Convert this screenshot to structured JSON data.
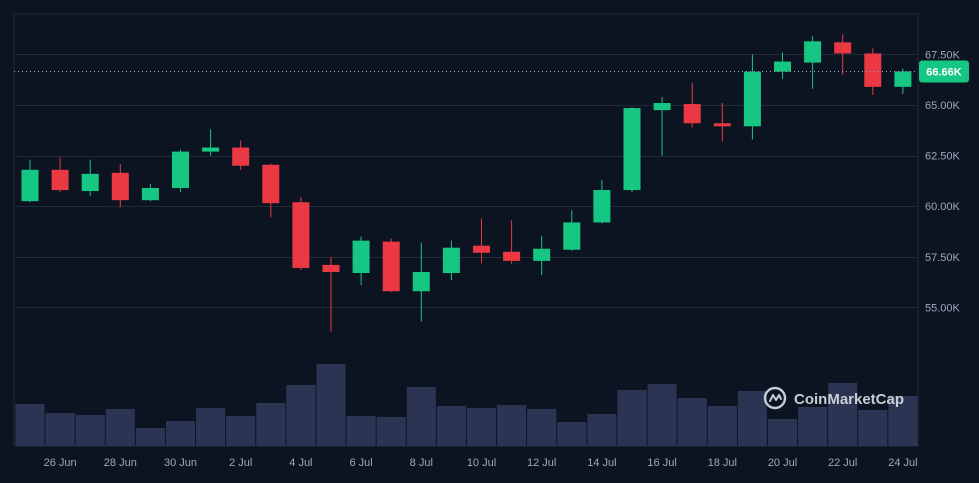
{
  "watermark": {
    "text": "CoinMarketCap",
    "icon": "coinmarketcap-logo-icon"
  },
  "colors": {
    "background": "#0d1421",
    "up": "#16c784",
    "down": "#ea3943",
    "volume": "#2b3553",
    "grid": "#222a38",
    "tick_text": "#a1a7bb",
    "price_line": "#a1a7bb"
  },
  "chart_data": {
    "type": "candlestick",
    "title": "",
    "xlabel": "",
    "ylabel": "",
    "ylim": [
      52500,
      69500
    ],
    "y_ticks": [
      55000,
      57500,
      60000,
      62500,
      65000,
      67500
    ],
    "y_tick_labels": [
      "55.00K",
      "57.50K",
      "60.00K",
      "62.50K",
      "65.00K",
      "67.50K"
    ],
    "x_tick_labels": [
      "26 Jun",
      "28 Jun",
      "30 Jun",
      "2 Jul",
      "4 Jul",
      "6 Jul",
      "8 Jul",
      "10 Jul",
      "12 Jul",
      "14 Jul",
      "16 Jul",
      "18 Jul",
      "20 Jul",
      "22 Jul",
      "24 Jul"
    ],
    "current_price": 66660,
    "current_price_label": "66.66K",
    "grid": true,
    "candles": [
      {
        "date": "25 Jun",
        "open": 60250,
        "high": 62300,
        "low": 60200,
        "close": 61800
      },
      {
        "date": "26 Jun",
        "open": 61800,
        "high": 62400,
        "low": 60700,
        "close": 60800
      },
      {
        "date": "27 Jun",
        "open": 60750,
        "high": 62300,
        "low": 60500,
        "close": 61600
      },
      {
        "date": "28 Jun",
        "open": 61650,
        "high": 62100,
        "low": 59950,
        "close": 60300
      },
      {
        "date": "29 Jun",
        "open": 60300,
        "high": 61100,
        "low": 60250,
        "close": 60900
      },
      {
        "date": "30 Jun",
        "open": 60900,
        "high": 62800,
        "low": 60700,
        "close": 62700
      },
      {
        "date": "1 Jul",
        "open": 62700,
        "high": 63800,
        "low": 62500,
        "close": 62900
      },
      {
        "date": "2 Jul",
        "open": 62900,
        "high": 63250,
        "low": 61800,
        "close": 62000
      },
      {
        "date": "3 Jul",
        "open": 62050,
        "high": 62100,
        "low": 59450,
        "close": 60150
      },
      {
        "date": "4 Jul",
        "open": 60200,
        "high": 60450,
        "low": 56850,
        "close": 56950
      },
      {
        "date": "5 Jul",
        "open": 57100,
        "high": 57500,
        "low": 53800,
        "close": 56750
      },
      {
        "date": "6 Jul",
        "open": 56700,
        "high": 58500,
        "low": 56100,
        "close": 58300
      },
      {
        "date": "7 Jul",
        "open": 58250,
        "high": 58400,
        "low": 55750,
        "close": 55800
      },
      {
        "date": "8 Jul",
        "open": 55800,
        "high": 58200,
        "low": 54300,
        "close": 56750
      },
      {
        "date": "9 Jul",
        "open": 56700,
        "high": 58300,
        "low": 56350,
        "close": 57950
      },
      {
        "date": "10 Jul",
        "open": 58050,
        "high": 59400,
        "low": 57200,
        "close": 57700
      },
      {
        "date": "11 Jul",
        "open": 57750,
        "high": 59300,
        "low": 57150,
        "close": 57300
      },
      {
        "date": "12 Jul",
        "open": 57300,
        "high": 58550,
        "low": 56600,
        "close": 57900
      },
      {
        "date": "13 Jul",
        "open": 57850,
        "high": 59800,
        "low": 57800,
        "close": 59200
      },
      {
        "date": "14 Jul",
        "open": 59200,
        "high": 61300,
        "low": 59150,
        "close": 60800
      },
      {
        "date": "15 Jul",
        "open": 60800,
        "high": 64900,
        "low": 60700,
        "close": 64850
      },
      {
        "date": "16 Jul",
        "open": 64750,
        "high": 65400,
        "low": 62500,
        "close": 65100
      },
      {
        "date": "17 Jul",
        "open": 65050,
        "high": 66100,
        "low": 63900,
        "close": 64100
      },
      {
        "date": "18 Jul",
        "open": 64100,
        "high": 65100,
        "low": 63200,
        "close": 63950
      },
      {
        "date": "19 Jul",
        "open": 63950,
        "high": 67500,
        "low": 63300,
        "close": 66650
      },
      {
        "date": "20 Jul",
        "open": 66650,
        "high": 67600,
        "low": 66300,
        "close": 67150
      },
      {
        "date": "21 Jul",
        "open": 67100,
        "high": 68400,
        "low": 65800,
        "close": 68150
      },
      {
        "date": "22 Jul",
        "open": 68100,
        "high": 68500,
        "low": 66500,
        "close": 67550
      },
      {
        "date": "23 Jul",
        "open": 67550,
        "high": 67800,
        "low": 65500,
        "close": 65900
      },
      {
        "date": "24 Jul",
        "open": 65900,
        "high": 66800,
        "low": 65550,
        "close": 66660
      }
    ],
    "volume": [
      42,
      33,
      31,
      37,
      18,
      25,
      38,
      30,
      43,
      61,
      82,
      30,
      29,
      59,
      40,
      38,
      41,
      37,
      24,
      32,
      56,
      62,
      48,
      40,
      55,
      27,
      39,
      63,
      36,
      50
    ]
  }
}
